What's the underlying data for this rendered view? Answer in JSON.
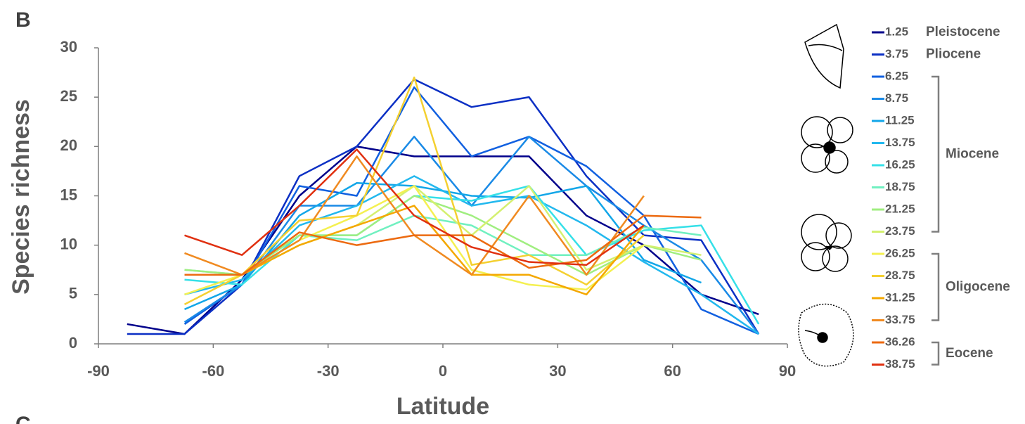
{
  "panel_label": "B",
  "next_panel_label": "C",
  "chart_data": {
    "type": "line",
    "x_label": "Latitude",
    "y_label": "Species richness",
    "x": [
      -82.5,
      -67.5,
      -52.5,
      -37.5,
      -22.5,
      -7.5,
      7.5,
      22.5,
      37.5,
      52.5,
      67.5,
      82.5
    ],
    "xlim": [
      -90,
      90
    ],
    "xticks": [
      -90,
      -60,
      -30,
      0,
      30,
      60,
      90
    ],
    "ylim": [
      0,
      30
    ],
    "yticks": [
      0,
      5,
      10,
      15,
      20,
      25,
      30
    ],
    "epochs": [
      "Pleistocene",
      "Pliocene",
      "Miocene",
      "Oligocene",
      "Eocene"
    ],
    "series": [
      {
        "name": "1.25",
        "color": "#00008b",
        "values": [
          2,
          1,
          6.5,
          15,
          20,
          19,
          19,
          19,
          13,
          10,
          5,
          3
        ]
      },
      {
        "name": "3.75",
        "color": "#0b2fc4",
        "values": [
          1,
          1,
          6,
          17,
          20,
          26.8,
          24,
          25,
          17,
          11,
          10.5,
          1
        ]
      },
      {
        "name": "6.25",
        "color": "#1160e0",
        "values": [
          null,
          2,
          6,
          16,
          15,
          26,
          19,
          21,
          18,
          13,
          3.5,
          1
        ]
      },
      {
        "name": "8.75",
        "color": "#1a8ae6",
        "values": [
          null,
          2.2,
          6,
          14,
          14,
          21,
          14,
          21,
          16,
          12,
          8.5,
          1
        ]
      },
      {
        "name": "11.25",
        "color": "#12a6e8",
        "values": [
          null,
          3.5,
          6,
          13,
          16.3,
          16,
          15,
          14.8,
          16,
          8.5,
          6.2,
          null
        ]
      },
      {
        "name": "13.75",
        "color": "#22b8ee",
        "values": [
          null,
          5,
          6.5,
          12,
          14,
          17,
          14,
          15,
          12,
          8.3,
          5,
          1
        ]
      },
      {
        "name": "16.25",
        "color": "#35e0e8",
        "values": [
          null,
          6.5,
          6,
          11,
          11,
          15,
          14.5,
          16,
          9,
          11.5,
          12,
          2
        ]
      },
      {
        "name": "18.75",
        "color": "#70f0c0",
        "values": [
          null,
          7.5,
          7,
          11,
          10.5,
          13,
          12,
          9,
          9,
          11.8,
          11,
          null
        ]
      },
      {
        "name": "21.25",
        "color": "#a0ee80",
        "values": [
          null,
          7.5,
          7,
          11,
          11,
          15,
          13,
          10,
          7,
          10,
          8.5,
          null
        ]
      },
      {
        "name": "23.75",
        "color": "#d4f070",
        "values": [
          null,
          7,
          7,
          10,
          12,
          16,
          11,
          16,
          7.5,
          10,
          9,
          null
        ]
      },
      {
        "name": "26.25",
        "color": "#f4f050",
        "values": [
          null,
          5,
          7,
          10.5,
          13,
          16,
          7.5,
          6,
          5.5,
          10,
          null,
          null
        ]
      },
      {
        "name": "28.75",
        "color": "#f4d030",
        "values": [
          null,
          4,
          7,
          12.5,
          13,
          27,
          8,
          9,
          6,
          11,
          null,
          null
        ]
      },
      {
        "name": "31.25",
        "color": "#f4a800",
        "values": [
          null,
          7,
          7,
          10,
          12,
          14,
          7,
          7,
          5,
          12,
          null,
          null
        ]
      },
      {
        "name": "33.75",
        "color": "#f08a20",
        "values": [
          null,
          9.2,
          7,
          10.5,
          19,
          11,
          7,
          15,
          7,
          15,
          null,
          null
        ]
      },
      {
        "name": "36.26",
        "color": "#ec6a10",
        "values": [
          null,
          7,
          7,
          11.3,
          10,
          11,
          11,
          7.7,
          8.5,
          13,
          12.8,
          null
        ]
      },
      {
        "name": "38.75",
        "color": "#e03010",
        "values": [
          null,
          11,
          9,
          14,
          19.7,
          13,
          9.8,
          8.3,
          8,
          12,
          null,
          null
        ]
      }
    ]
  }
}
